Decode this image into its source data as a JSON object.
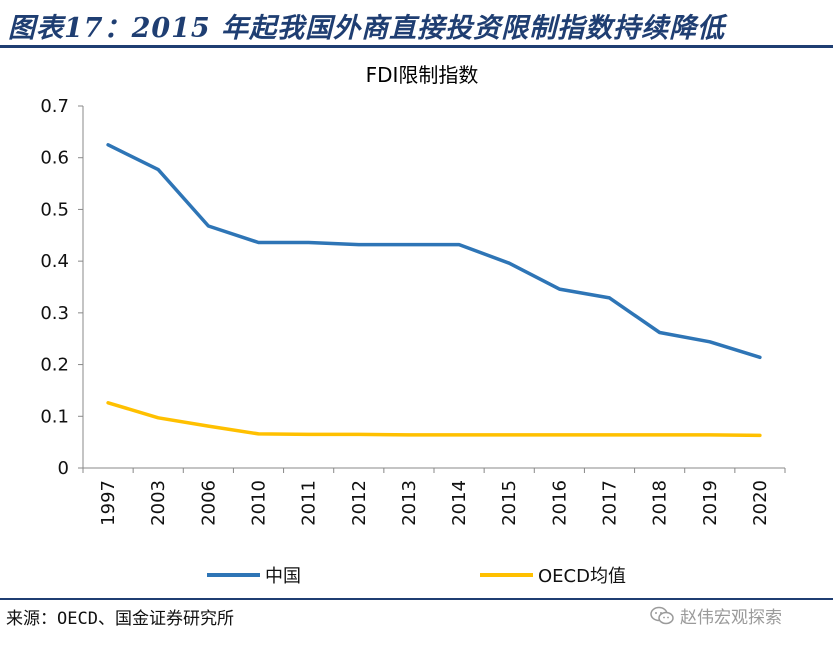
{
  "header": {
    "title": "图表17：2015 年起我国外商直接投资限制指数持续降低"
  },
  "footer": {
    "source": "来源：OECD、国金证券研究所",
    "watermark": "赵伟宏观探索"
  },
  "colors": {
    "accent": "#1f3e72",
    "china": "#2e75b6",
    "oecd": "#ffc000"
  },
  "chart_data": {
    "type": "line",
    "title": "FDI限制指数",
    "categories": [
      "1997",
      "2003",
      "2006",
      "2010",
      "2011",
      "2012",
      "2013",
      "2014",
      "2015",
      "2016",
      "2017",
      "2018",
      "2019",
      "2020"
    ],
    "yticks": [
      "0",
      "0.1",
      "0.2",
      "0.3",
      "0.4",
      "0.5",
      "0.6",
      "0.7"
    ],
    "ylim": [
      0,
      0.7
    ],
    "grid": false,
    "legend": "bottom",
    "series": [
      {
        "name": "中国",
        "color": "#2e75b6",
        "values": [
          0.625,
          0.577,
          0.468,
          0.436,
          0.436,
          0.432,
          0.432,
          0.432,
          0.396,
          0.346,
          0.329,
          0.262,
          0.244,
          0.214
        ]
      },
      {
        "name": "OECD均值",
        "color": "#ffc000",
        "values": [
          0.126,
          0.097,
          0.081,
          0.066,
          0.065,
          0.065,
          0.064,
          0.064,
          0.064,
          0.064,
          0.064,
          0.064,
          0.064,
          0.063
        ]
      }
    ]
  }
}
